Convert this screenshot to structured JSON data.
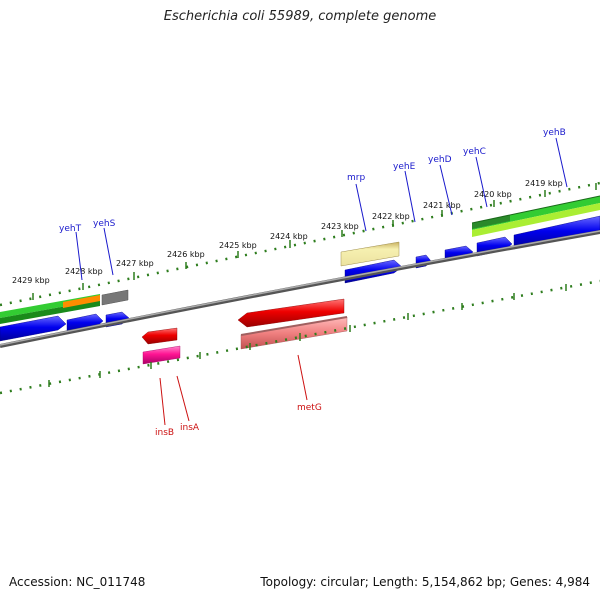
{
  "header": {
    "title": "Escherichia coli 55989, complete genome"
  },
  "footer": {
    "accession": "Accession: NC_011748",
    "stats": "Topology: circular; Length: 5,154,862 bp; Genes: 4,984"
  },
  "ruler": {
    "labels": [
      "2429 kbp",
      "2428 kbp",
      "2427 kbp",
      "2426 kbp",
      "2425 kbp",
      "2424 kbp",
      "2423 kbp",
      "2422 kbp",
      "2421 kbp",
      "2420 kbp",
      "2419 kbp"
    ]
  },
  "genes": {
    "forward": [
      "yehT",
      "yehS",
      "mrp",
      "yehE",
      "yehD",
      "yehC",
      "yehB"
    ],
    "reverse": [
      "insB",
      "insA",
      "metG"
    ]
  },
  "colors": {
    "forward_label": "#1a1acc",
    "reverse_label": "#cc1111",
    "tick": "#2e7d1e",
    "backbone": "#888888",
    "cds": "#0000ee",
    "rev_cds": "#ee1111",
    "rev_rna": "#f08080",
    "insertion": "#ff1493",
    "green_band": "#33cc33",
    "dark_green": "#2a8a2a",
    "lime": "#aaee33",
    "orange": "#ff8c00",
    "grey_block": "#777777",
    "pale_yellow": "#f0eaa0"
  }
}
